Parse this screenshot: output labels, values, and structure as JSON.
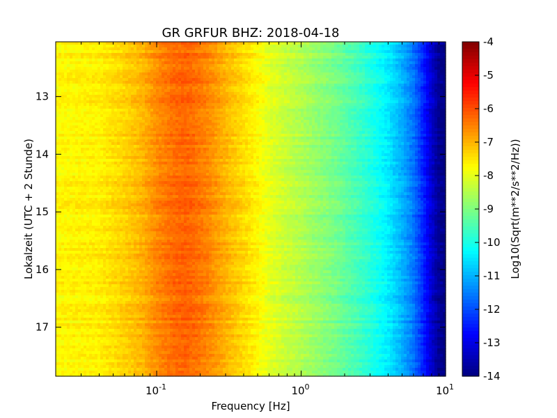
{
  "chart_data": {
    "type": "heatmap",
    "title": "GR GRFUR BHZ: 2018-04-18",
    "xlabel": "Frequency [Hz]",
    "ylabel": "Lokalzeit (UTC + 2 Stunde)",
    "xscale": "log",
    "xlim": [
      0.02,
      10
    ],
    "ylim": [
      12.05,
      17.85
    ],
    "y_inverted": true,
    "x_ticks": [
      {
        "value": 0.1,
        "base": "10",
        "exp": "-1"
      },
      {
        "value": 1,
        "base": "10",
        "exp": "0"
      },
      {
        "value": 10,
        "base": "10",
        "exp": "1"
      }
    ],
    "y_ticks": [
      13,
      14,
      15,
      16,
      17
    ],
    "colormap": "jet",
    "colorbar": {
      "label": "Log10(Sqrt(m**2/s**2/Hz))",
      "range": [
        -14,
        -4
      ],
      "ticks": [
        "-4",
        "-5",
        "-6",
        "-7",
        "-8",
        "-9",
        "-10",
        "-11",
        "-12",
        "-13",
        "-14"
      ]
    },
    "spectrum_profile": {
      "frequency": [
        0.02,
        0.04,
        0.06,
        0.08,
        0.1,
        0.13,
        0.16,
        0.2,
        0.25,
        0.3,
        0.4,
        0.5,
        0.6,
        0.8,
        1.0,
        1.3,
        1.6,
        2.0,
        2.5,
        3.0,
        4.0,
        5.0,
        6.0,
        7.0,
        8.0,
        9.0,
        10.0
      ],
      "level": [
        -7.7,
        -7.6,
        -7.3,
        -7.0,
        -6.6,
        -6.3,
        -6.2,
        -6.4,
        -6.7,
        -7.0,
        -7.4,
        -7.7,
        -8.0,
        -8.3,
        -8.5,
        -8.8,
        -9.0,
        -9.3,
        -9.6,
        -9.9,
        -10.4,
        -11.0,
        -11.6,
        -12.4,
        -13.2,
        -13.8,
        -14.0
      ]
    }
  }
}
